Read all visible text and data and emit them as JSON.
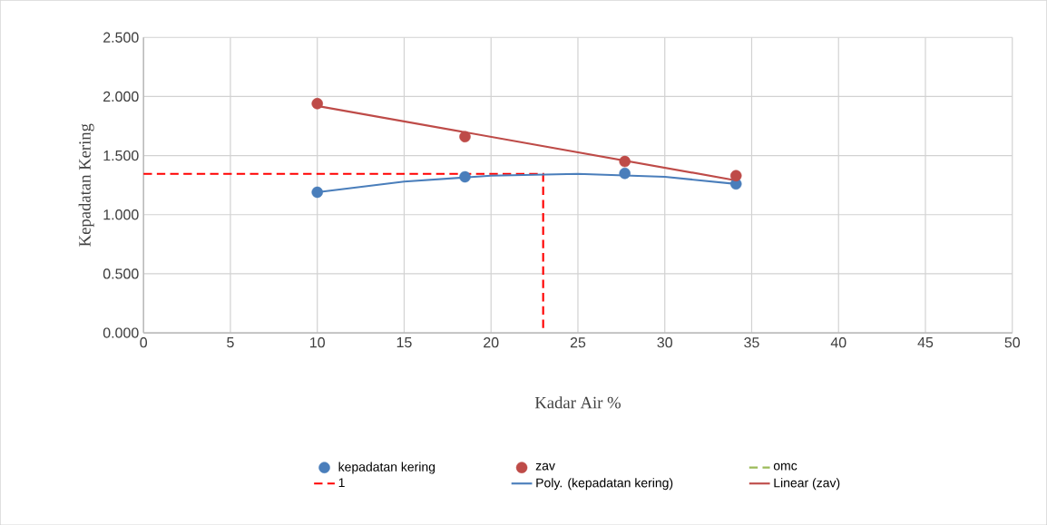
{
  "chart_data": {
    "type": "line",
    "xlabel": "Kadar Air %",
    "ylabel": "Kepadatan Kering",
    "xlim": [
      0,
      50
    ],
    "xticks": [
      0,
      5,
      10,
      15,
      20,
      25,
      30,
      35,
      40,
      45,
      50
    ],
    "ylim": [
      0,
      2.5
    ],
    "yticks": [
      {
        "value": 0,
        "label": "0.000"
      },
      {
        "value": 0.5,
        "label": "0.500"
      },
      {
        "value": 1,
        "label": "1.000"
      },
      {
        "value": 1.5,
        "label": "1.500"
      },
      {
        "value": 2,
        "label": "2.000"
      },
      {
        "value": 2.5,
        "label": "2.500"
      }
    ],
    "grid": true,
    "legend": "bottom",
    "series": [
      {
        "name": "kepadatan kering",
        "type": "scatter",
        "color": "#4a7ebb",
        "marker": "circle",
        "x": [
          10,
          18.5,
          27.7,
          34.1
        ],
        "values": [
          1.19,
          1.32,
          1.35,
          1.26
        ]
      },
      {
        "name": "zav",
        "type": "scatter",
        "color": "#be4b48",
        "marker": "circle",
        "x": [
          10,
          18.5,
          27.7,
          34.1
        ],
        "values": [
          1.94,
          1.66,
          1.45,
          1.33
        ]
      },
      {
        "name": "omc",
        "color": "#9bbb59",
        "marker": "none",
        "line_style": "dashed"
      },
      {
        "name": "1",
        "color": "#ff0000",
        "marker": "none",
        "line_style": "dashed",
        "x": [
          0,
          23,
          23
        ],
        "values": [
          1.345,
          1.345,
          0
        ]
      },
      {
        "name": "Poly. (kepadatan kering)",
        "color": "#4a7ebb",
        "marker": "none",
        "line_style": "solid",
        "x": [
          10,
          15,
          20,
          25,
          30,
          34.1
        ],
        "values": [
          1.19,
          1.28,
          1.33,
          1.345,
          1.32,
          1.26
        ]
      },
      {
        "name": "Linear (zav)",
        "color": "#be4b48",
        "marker": "none",
        "line_style": "solid",
        "x": [
          10,
          34.1
        ],
        "values": [
          1.92,
          1.29
        ]
      }
    ]
  }
}
